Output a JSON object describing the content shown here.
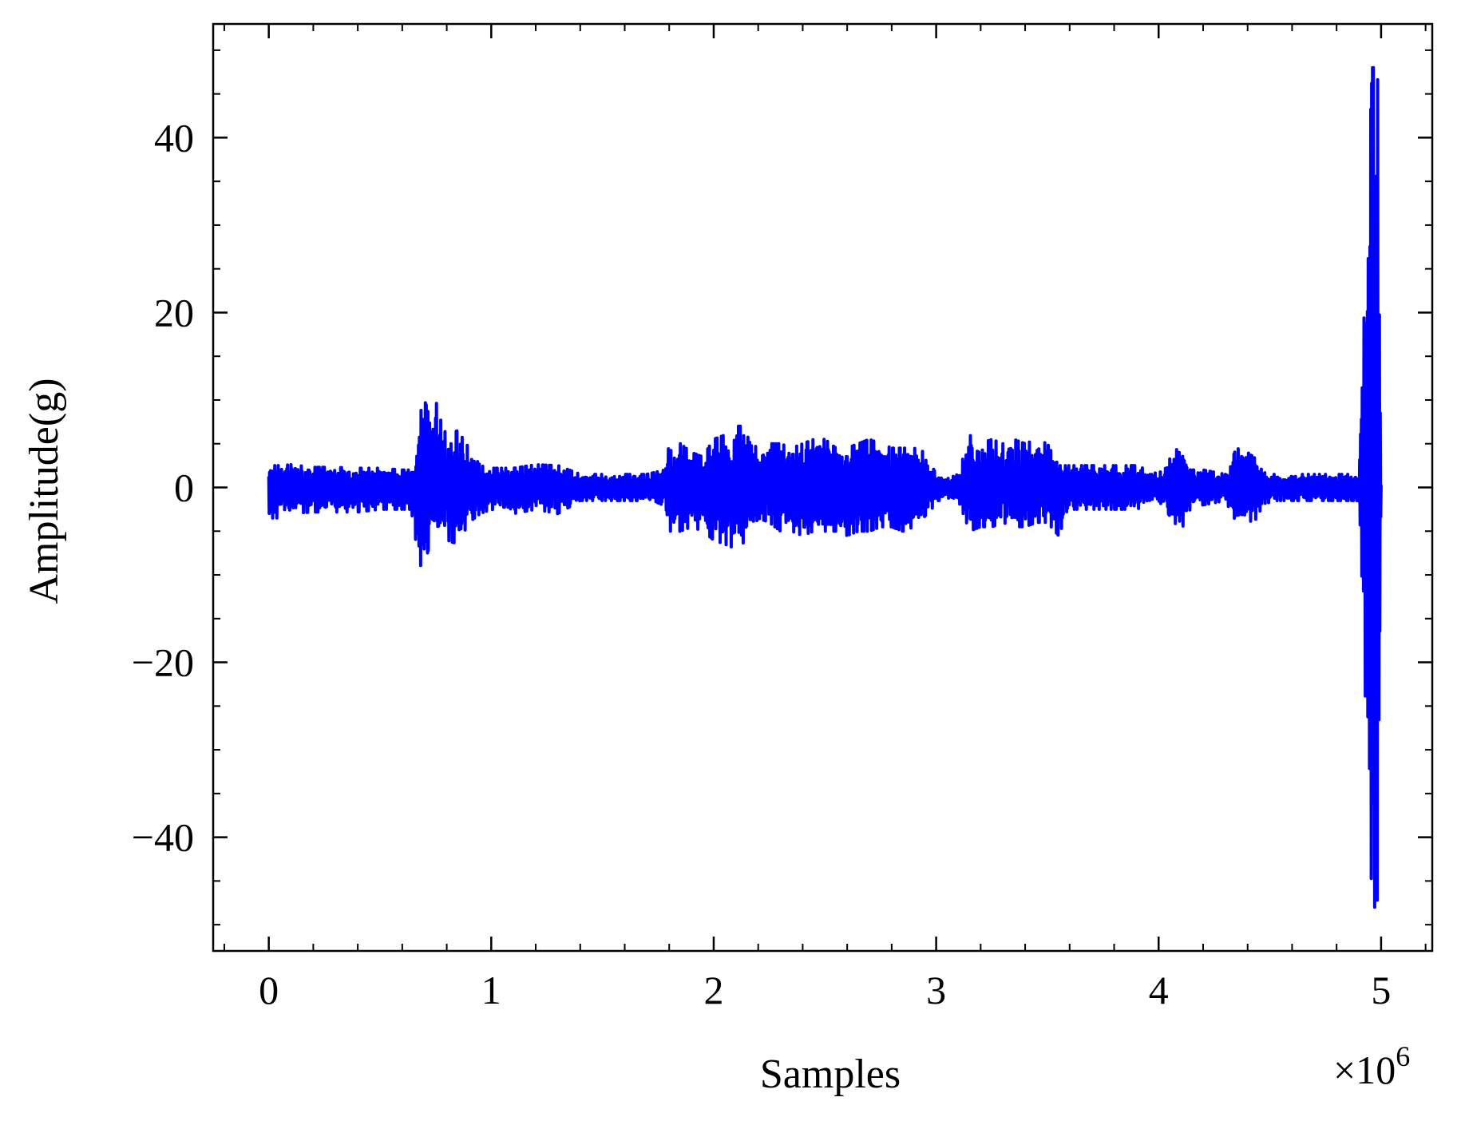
{
  "chart_data": {
    "type": "line",
    "title": "",
    "xlabel": "Samples",
    "ylabel": "Amplitude(g)",
    "x_scale_factor_label": "×10",
    "x_scale_factor_exponent": "6",
    "xlim": [
      -0.25,
      5.23
    ],
    "ylim": [
      -53,
      53
    ],
    "x_ticks": [
      0,
      1,
      2,
      3,
      4,
      5
    ],
    "x_tick_labels": [
      "0",
      "1",
      "2",
      "3",
      "4",
      "5"
    ],
    "y_ticks": [
      40,
      20,
      0,
      -20,
      -40
    ],
    "y_tick_labels": [
      "40",
      "20",
      "0",
      "−20",
      "−40"
    ],
    "x_minor_step": 0.2,
    "y_minor_step": 5,
    "grid": false,
    "legend": "none",
    "series": [
      {
        "color": "#0000ff",
        "envelope": {
          "x": [
            0.0,
            0.05,
            0.1,
            0.2,
            0.3,
            0.4,
            0.5,
            0.6,
            0.64,
            0.66,
            0.68,
            0.7,
            0.72,
            0.74,
            0.76,
            0.78,
            0.8,
            0.85,
            0.9,
            0.95,
            1.0,
            1.1,
            1.2,
            1.3,
            1.4,
            1.5,
            1.6,
            1.7,
            1.78,
            1.8,
            1.85,
            1.9,
            1.95,
            2.0,
            2.05,
            2.1,
            2.15,
            2.2,
            2.25,
            2.3,
            2.35,
            2.4,
            2.45,
            2.5,
            2.55,
            2.6,
            2.65,
            2.7,
            2.75,
            2.8,
            2.85,
            2.9,
            2.95,
            3.0,
            3.05,
            3.1,
            3.15,
            3.2,
            3.25,
            3.3,
            3.35,
            3.4,
            3.45,
            3.5,
            3.55,
            3.6,
            3.65,
            3.7,
            3.8,
            3.9,
            4.0,
            4.1,
            4.15,
            4.2,
            4.3,
            4.35,
            4.4,
            4.45,
            4.5,
            4.6,
            4.7,
            4.8,
            4.9,
            4.96,
            4.98,
            4.99,
            5.0
          ],
          "upper": [
            2.5,
            2.5,
            2.6,
            2.3,
            2.3,
            2.2,
            2.2,
            2.0,
            2.0,
            3.0,
            8.0,
            11.5,
            12.0,
            11.0,
            9.0,
            7.0,
            6.0,
            6.5,
            4.5,
            2.5,
            2.2,
            2.2,
            2.6,
            2.5,
            1.5,
            1.5,
            1.5,
            1.5,
            2.0,
            5.0,
            5.0,
            4.0,
            3.5,
            5.5,
            6.0,
            7.0,
            7.0,
            4.0,
            5.0,
            5.0,
            4.5,
            5.0,
            5.5,
            5.5,
            4.5,
            4.5,
            5.0,
            5.5,
            5.0,
            4.5,
            4.5,
            4.5,
            4.0,
            1.5,
            1.0,
            1.5,
            6.0,
            5.0,
            5.5,
            5.0,
            5.5,
            5.0,
            5.5,
            5.0,
            2.5,
            2.5,
            2.5,
            2.5,
            2.5,
            2.5,
            1.5,
            5.0,
            2.0,
            2.0,
            1.5,
            4.5,
            4.0,
            3.0,
            1.5,
            1.5,
            1.5,
            1.5,
            1.5,
            48.0,
            48.0,
            45.0,
            0.5
          ],
          "lower": [
            -3.5,
            -3.5,
            -3.0,
            -2.8,
            -2.8,
            -2.8,
            -2.5,
            -2.5,
            -2.5,
            -6.0,
            -9.0,
            -8.5,
            -7.0,
            -6.0,
            -5.5,
            -6.0,
            -6.0,
            -6.5,
            -4.0,
            -3.0,
            -2.5,
            -3.0,
            -2.5,
            -3.0,
            -1.5,
            -1.5,
            -1.5,
            -1.5,
            -2.5,
            -5.0,
            -5.0,
            -4.5,
            -5.0,
            -6.0,
            -6.5,
            -7.0,
            -6.0,
            -3.5,
            -4.0,
            -5.0,
            -5.0,
            -5.5,
            -5.0,
            -5.0,
            -5.0,
            -5.5,
            -5.0,
            -5.0,
            -4.5,
            -4.5,
            -5.0,
            -4.5,
            -4.0,
            -1.5,
            -1.5,
            -1.5,
            -5.0,
            -4.5,
            -4.5,
            -4.0,
            -4.5,
            -4.5,
            -4.0,
            -4.0,
            -5.5,
            -2.5,
            -2.5,
            -2.5,
            -2.5,
            -2.5,
            -1.5,
            -5.0,
            -2.0,
            -2.0,
            -1.5,
            -4.0,
            -4.0,
            -3.5,
            -1.5,
            -1.5,
            -1.5,
            -1.5,
            -1.5,
            -48.0,
            -48.0,
            -45.0,
            -0.5
          ]
        }
      }
    ]
  }
}
